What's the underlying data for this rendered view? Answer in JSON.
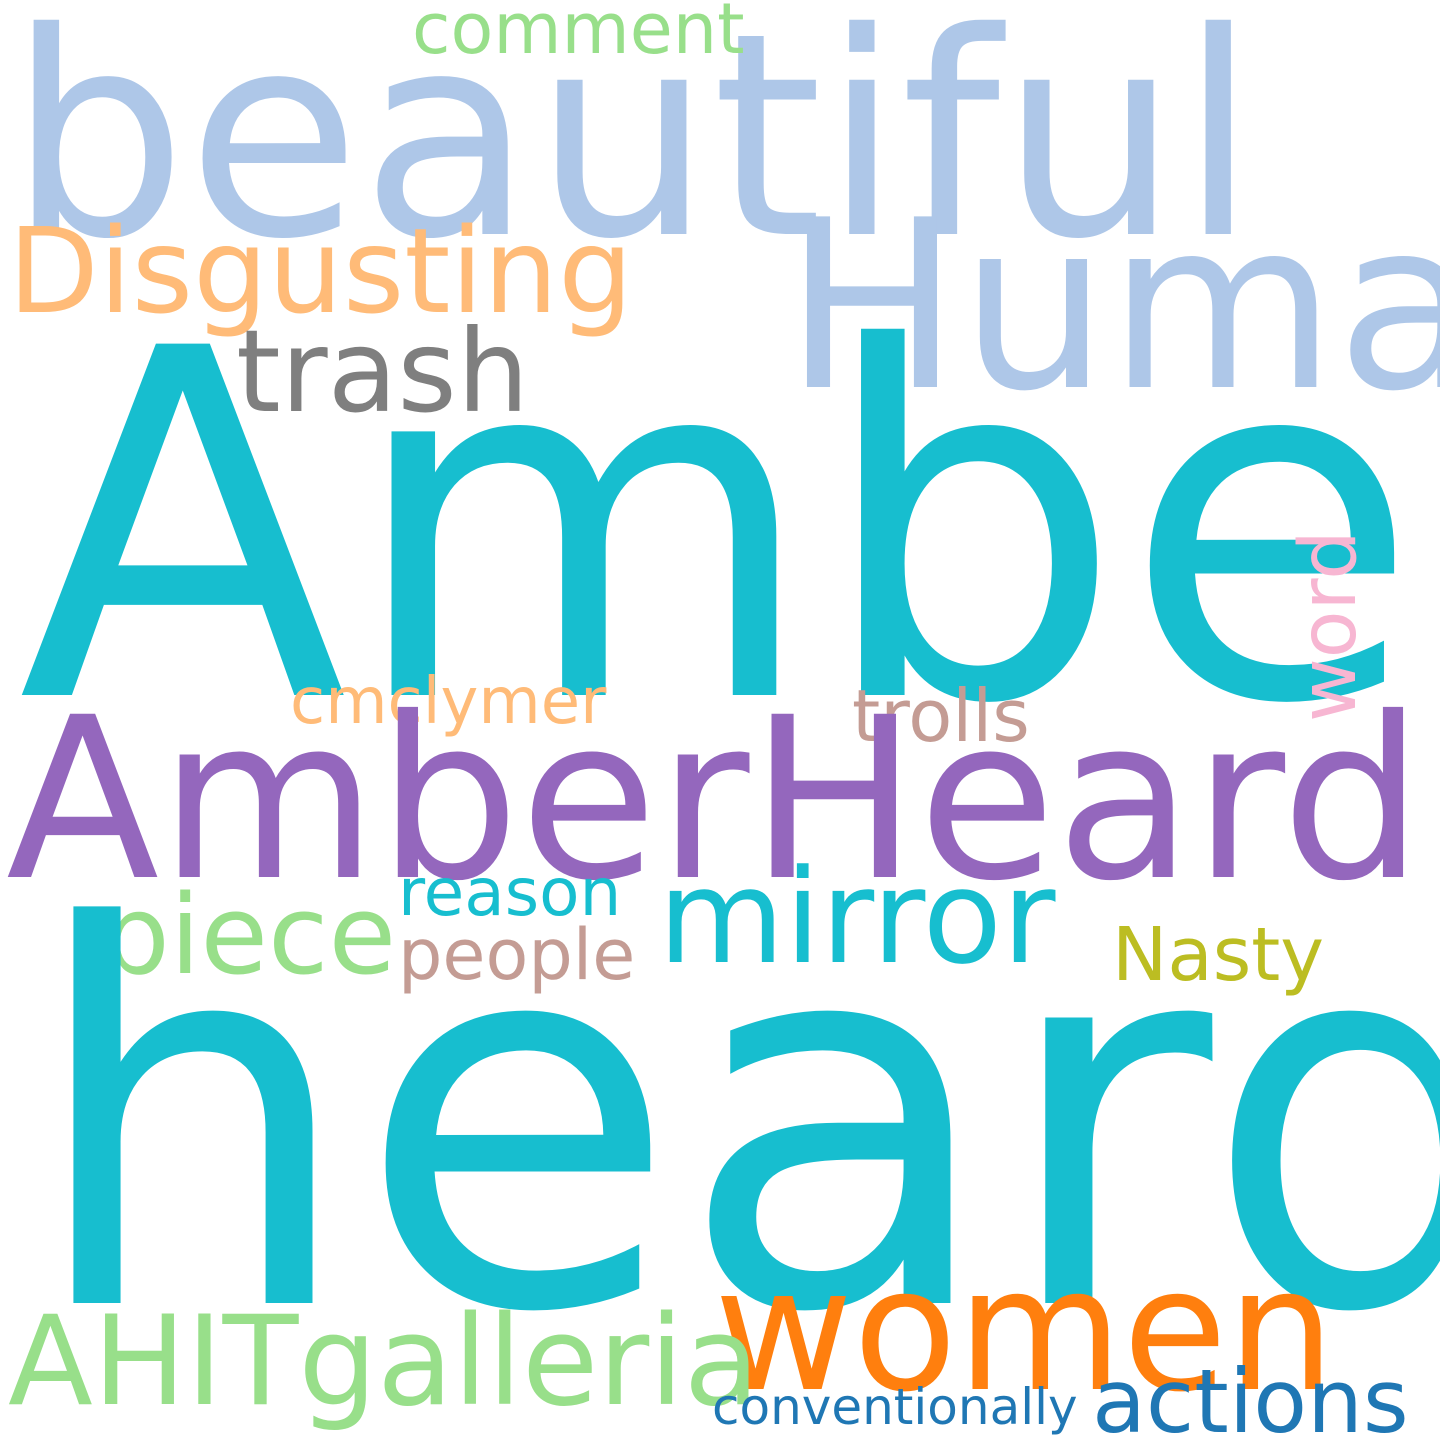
{
  "words": {
    "beautiful": {
      "text": "beautiful",
      "color": "#aec7e8"
    },
    "comment": {
      "text": "comment",
      "color": "#98df8a"
    },
    "human": {
      "text": "Human",
      "color": "#aec7e8"
    },
    "disgusting": {
      "text": "Disgusting",
      "color": "#ffbb78"
    },
    "trash": {
      "text": "trash",
      "color": "#7f7f7f"
    },
    "amber": {
      "text": "Amber",
      "color": "#17becf"
    },
    "word": {
      "text": "word",
      "color": "#f7b6d2"
    },
    "cmclymer": {
      "text": "cmclymer",
      "color": "#ffbb78"
    },
    "trolls": {
      "text": "trolls",
      "color": "#c49c94"
    },
    "amberheardit": {
      "text": "AmberHeardIT",
      "color": "#9467bd"
    },
    "reason": {
      "text": "reason",
      "color": "#17becf"
    },
    "mirror": {
      "text": "mirror",
      "color": "#17becf"
    },
    "piece": {
      "text": "piece",
      "color": "#98df8a"
    },
    "people": {
      "text": "people",
      "color": "#c49c94"
    },
    "nasty": {
      "text": "Nasty",
      "color": "#bcbd22"
    },
    "heard": {
      "text": "heard",
      "color": "#17becf"
    },
    "women": {
      "text": "women",
      "color": "#ff7f0e"
    },
    "ahitgalleria": {
      "text": "AHITgalleria",
      "color": "#98df8a"
    },
    "conventionally": {
      "text": "conventionally",
      "color": "#1f77b4"
    },
    "actions": {
      "text": "actions",
      "color": "#1f77b4"
    }
  }
}
